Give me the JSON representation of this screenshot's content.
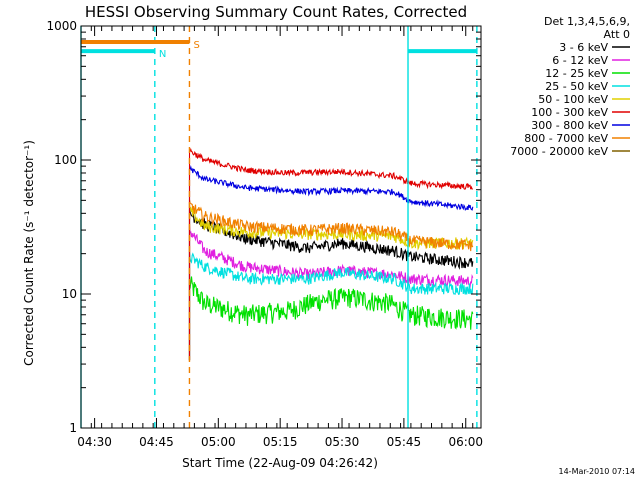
{
  "chart_data": {
    "type": "line",
    "title": "HESSI Observing Summary Count Rates, Corrected",
    "xlabel": "Start Time (22-Aug-09 04:26:42)",
    "ylabel": "Corrected Count Rate (s⁻¹ detector⁻¹)",
    "yscale": "log",
    "ylim": [
      1,
      1000
    ],
    "xlim_minutes_after_0426": [
      0,
      97
    ],
    "y_ticks": [
      "1",
      "10",
      "100",
      "1000"
    ],
    "x_ticks": [
      {
        "label": "04:30",
        "minute": 3.3
      },
      {
        "label": "04:45",
        "minute": 18.3
      },
      {
        "label": "05:00",
        "minute": 33.3
      },
      {
        "label": "05:15",
        "minute": 48.3
      },
      {
        "label": "05:30",
        "minute": 63.3
      },
      {
        "label": "05:45",
        "minute": 78.3
      },
      {
        "label": "06:00",
        "minute": 93.3
      }
    ],
    "legend_placement": "top-right outside",
    "legend_header": [
      "Det 1,3,4,5,6,9,",
      "Att 0"
    ],
    "series": [
      {
        "name": "3 - 6 keV",
        "color": "#000000",
        "points": [
          [
            26.3,
            40
          ],
          [
            30,
            33
          ],
          [
            40,
            26
          ],
          [
            55,
            22
          ],
          [
            63,
            24
          ],
          [
            76,
            21
          ],
          [
            80,
            19
          ],
          [
            95,
            17
          ]
        ]
      },
      {
        "name": "6 - 12 keV",
        "color": "#e020e0",
        "points": [
          [
            26.3,
            30
          ],
          [
            30,
            21
          ],
          [
            40,
            16
          ],
          [
            55,
            14
          ],
          [
            63,
            15
          ],
          [
            76,
            14
          ],
          [
            80,
            13
          ],
          [
            95,
            12.5
          ]
        ]
      },
      {
        "name": "12 - 25 keV",
        "color": "#00e000",
        "points": [
          [
            26.3,
            12
          ],
          [
            30,
            8.5
          ],
          [
            40,
            7
          ],
          [
            50,
            7.5
          ],
          [
            58,
            9
          ],
          [
            65,
            9.5
          ],
          [
            75,
            8.5
          ],
          [
            80,
            7
          ],
          [
            95,
            6.5
          ]
        ]
      },
      {
        "name": "25 - 50 keV",
        "color": "#00e0e0",
        "points": [
          [
            26.3,
            19
          ],
          [
            30,
            16
          ],
          [
            40,
            13
          ],
          [
            55,
            13
          ],
          [
            63,
            14.5
          ],
          [
            76,
            13
          ],
          [
            80,
            11
          ],
          [
            95,
            11
          ]
        ]
      },
      {
        "name": "50 - 100 keV",
        "color": "#e0d000",
        "points": [
          [
            26.3,
            42
          ],
          [
            30,
            32
          ],
          [
            40,
            29
          ],
          [
            55,
            28
          ],
          [
            63,
            28
          ],
          [
            76,
            27
          ],
          [
            80,
            24
          ],
          [
            95,
            24
          ]
        ]
      },
      {
        "name": "100 - 300 keV",
        "color": "#e00000",
        "points": [
          [
            26.3,
            118
          ],
          [
            30,
            100
          ],
          [
            40,
            84
          ],
          [
            50,
            80
          ],
          [
            63,
            82
          ],
          [
            76,
            76
          ],
          [
            80,
            67
          ],
          [
            95,
            63
          ]
        ]
      },
      {
        "name": "300 - 800 keV",
        "color": "#0000e0",
        "points": [
          [
            26.3,
            87
          ],
          [
            30,
            72
          ],
          [
            40,
            62
          ],
          [
            55,
            58
          ],
          [
            63,
            59
          ],
          [
            76,
            58
          ],
          [
            80,
            49
          ],
          [
            95,
            44
          ]
        ]
      },
      {
        "name": "800 - 7000 keV",
        "color": "#f08000",
        "points": [
          [
            26.3,
            46
          ],
          [
            30,
            38
          ],
          [
            40,
            32
          ],
          [
            55,
            30
          ],
          [
            63,
            31
          ],
          [
            76,
            29
          ],
          [
            80,
            25
          ],
          [
            95,
            23
          ]
        ]
      },
      {
        "name": "7000 - 20000 keV",
        "color": "#806000",
        "points": []
      }
    ],
    "flags": [
      {
        "label": "N",
        "color": "#00e0e0",
        "start": 0,
        "end": 17.9,
        "level": 650
      },
      {
        "label": "N",
        "color": "#00e0e0",
        "start": 79.3,
        "end": 96,
        "level": 650
      },
      {
        "label": "S",
        "color": "#f08000",
        "start": 0,
        "end": 26.3,
        "level": 760
      }
    ],
    "eclipse_boundaries": [
      0,
      17.9,
      79.3,
      96
    ],
    "saa_boundary": 26.3
  },
  "footer": {
    "timestamp": "14-Mar-2010 07:14"
  }
}
